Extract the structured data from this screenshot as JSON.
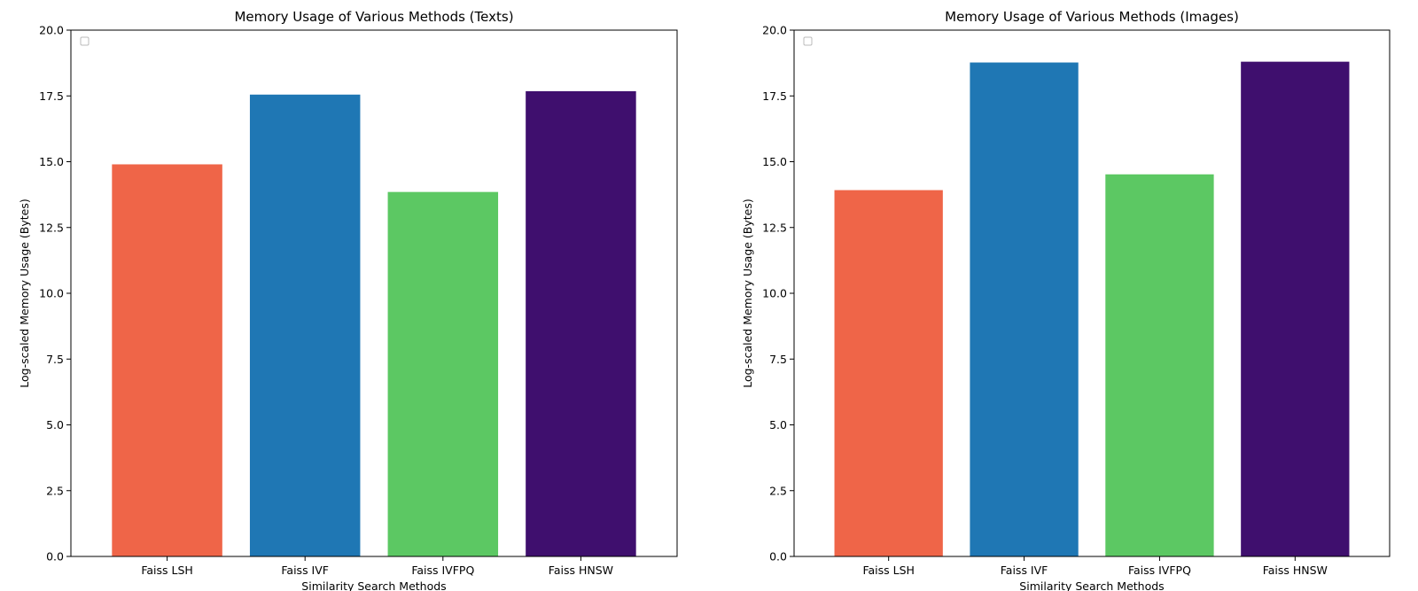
{
  "chart_data": [
    {
      "type": "bar",
      "title": "Memory Usage of Various Methods (Texts)",
      "xlabel": "Similarity Search Methods",
      "ylabel": "Log-scaled Memory Usage (Bytes)",
      "categories": [
        "Faiss LSH",
        "Faiss IVF",
        "Faiss IVFPQ",
        "Faiss HNSW"
      ],
      "values": [
        14.9,
        17.55,
        13.85,
        17.68
      ],
      "colors": [
        "#ef6548",
        "#1f77b4",
        "#5cc863",
        "#3f0f6e"
      ],
      "ylim": [
        0,
        20
      ],
      "yticks": [
        "0.0",
        "2.5",
        "5.0",
        "7.5",
        "10.0",
        "12.5",
        "15.0",
        "17.5",
        "20.0"
      ],
      "grid": false,
      "legend": "top-left, empty"
    },
    {
      "type": "bar",
      "title": "Memory Usage of Various Methods (Images)",
      "xlabel": "Similarity Search Methods",
      "ylabel": "Log-scaled Memory Usage (Bytes)",
      "categories": [
        "Faiss LSH",
        "Faiss IVF",
        "Faiss IVFPQ",
        "Faiss HNSW"
      ],
      "values": [
        13.92,
        18.77,
        14.52,
        18.8
      ],
      "colors": [
        "#ef6548",
        "#1f77b4",
        "#5cc863",
        "#3f0f6e"
      ],
      "ylim": [
        0,
        20
      ],
      "yticks": [
        "0.0",
        "2.5",
        "5.0",
        "7.5",
        "10.0",
        "12.5",
        "15.0",
        "17.5",
        "20.0"
      ],
      "grid": false,
      "legend": "top-left, empty"
    }
  ]
}
